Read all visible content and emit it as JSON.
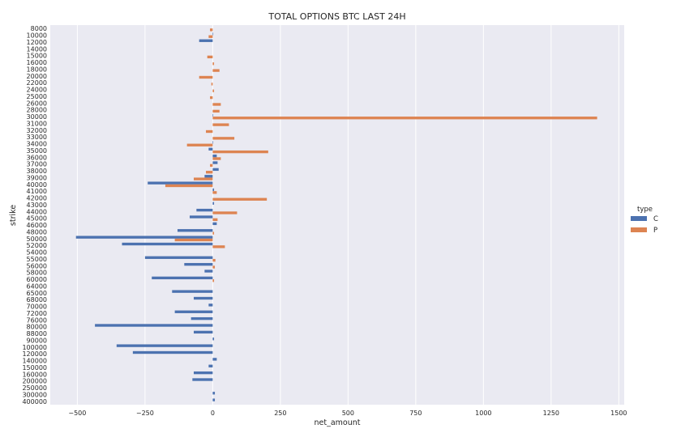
{
  "chart_data": {
    "type": "bar",
    "orientation": "horizontal",
    "title": "TOTAL OPTIONS BTC LAST 24H",
    "xlabel": "net_amount",
    "ylabel": "strike",
    "xlim": [
      -600,
      1520
    ],
    "xticks": [
      -500,
      -250,
      0,
      250,
      500,
      750,
      1000,
      1250,
      1500
    ],
    "grid": true,
    "legend": {
      "title": "type",
      "position": "right",
      "entries": [
        "C",
        "P"
      ]
    },
    "colors": {
      "C": "#4c72b0",
      "P": "#dd8452",
      "background": "#eaeaf2",
      "grid": "#ffffff"
    },
    "categories": [
      "8000",
      "10000",
      "12000",
      "14000",
      "15000",
      "16000",
      "18000",
      "20000",
      "22000",
      "24000",
      "25000",
      "26000",
      "28000",
      "30000",
      "31000",
      "32000",
      "33000",
      "34000",
      "35000",
      "36000",
      "37000",
      "38000",
      "39000",
      "40000",
      "41000",
      "42000",
      "43000",
      "44000",
      "45000",
      "46000",
      "48000",
      "50000",
      "52000",
      "54000",
      "55000",
      "56000",
      "58000",
      "60000",
      "64000",
      "65000",
      "68000",
      "70000",
      "72000",
      "76000",
      "80000",
      "88000",
      "90000",
      "100000",
      "120000",
      "140000",
      "150000",
      "160000",
      "200000",
      "250000",
      "300000",
      "400000"
    ],
    "series": [
      {
        "name": "C",
        "values": [
          0,
          2,
          -50,
          0,
          0,
          0,
          0,
          0,
          0,
          0,
          0,
          0,
          0,
          2,
          0,
          0,
          0,
          2,
          -15,
          15,
          18,
          22,
          -30,
          -240,
          5,
          0,
          5,
          -60,
          -85,
          15,
          -130,
          -505,
          -335,
          0,
          -250,
          -105,
          -30,
          -225,
          0,
          -150,
          -70,
          -15,
          -140,
          -80,
          -435,
          -70,
          5,
          -355,
          -295,
          15,
          -15,
          -70,
          -75,
          0,
          8,
          8
        ]
      },
      {
        "name": "P",
        "values": [
          -10,
          -15,
          0,
          0,
          -20,
          5,
          25,
          -50,
          -5,
          5,
          -10,
          30,
          25,
          1420,
          60,
          -25,
          80,
          -95,
          205,
          30,
          -10,
          -25,
          -70,
          -175,
          15,
          200,
          0,
          90,
          18,
          0,
          5,
          -140,
          45,
          0,
          10,
          8,
          0,
          5,
          0,
          0,
          0,
          0,
          0,
          0,
          0,
          0,
          0,
          0,
          0,
          0,
          0,
          0,
          0,
          0,
          0,
          0
        ]
      }
    ]
  }
}
